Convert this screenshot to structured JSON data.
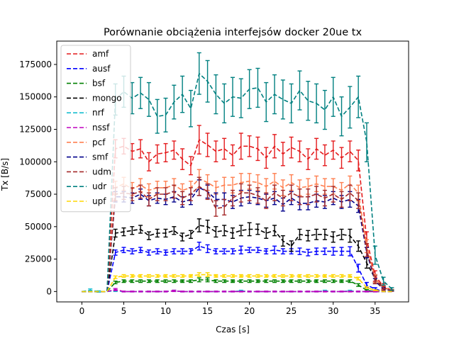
{
  "chart_data": {
    "type": "line",
    "title": "Porównanie obciążenia interfejsów docker 20ue tx",
    "xlabel": "Czas [s]",
    "ylabel": "Tx [B/s]",
    "xlim": [
      -3,
      39
    ],
    "ylim": [
      -8000,
      193000
    ],
    "xticks": [
      0,
      5,
      10,
      15,
      20,
      25,
      30,
      35
    ],
    "yticks": [
      0,
      25000,
      50000,
      75000,
      100000,
      125000,
      150000,
      175000
    ],
    "xtick_labels": [
      "0",
      "5",
      "10",
      "15",
      "20",
      "25",
      "30",
      "35"
    ],
    "ytick_labels": [
      "0",
      "25000",
      "50000",
      "75000",
      "100000",
      "125000",
      "150000",
      "175000"
    ],
    "grid": false,
    "legend_position": "upper-left",
    "line_style": "dashed with error bars",
    "x": [
      0,
      1,
      2,
      3,
      4,
      5,
      6,
      7,
      8,
      9,
      10,
      11,
      12,
      13,
      14,
      15,
      16,
      17,
      18,
      19,
      20,
      21,
      22,
      23,
      24,
      25,
      26,
      27,
      28,
      29,
      30,
      31,
      32,
      33,
      34,
      35,
      36,
      37
    ],
    "series": [
      {
        "name": "amf",
        "color": "#e41a1c",
        "values": [
          0,
          0,
          0,
          0,
          110000,
          112000,
          108000,
          110000,
          100000,
          106000,
          107000,
          109000,
          102000,
          97000,
          117000,
          113000,
          108000,
          110000,
          105000,
          112000,
          112000,
          110000,
          103000,
          112000,
          106000,
          111000,
          108000,
          102000,
          110000,
          105000,
          109000,
          103000,
          108000,
          101000,
          40000,
          12000,
          4000,
          1000
        ],
        "errors": [
          0,
          0,
          0,
          0,
          7000,
          6000,
          6000,
          7000,
          7000,
          7000,
          7000,
          7000,
          8000,
          7000,
          11000,
          9000,
          8000,
          8000,
          8000,
          10000,
          8000,
          9000,
          8000,
          9000,
          9000,
          8000,
          8000,
          8000,
          8000,
          8000,
          7000,
          8000,
          8000,
          8000,
          6000,
          4000,
          2000,
          500
        ]
      },
      {
        "name": "ausf",
        "color": "#0000ff",
        "values": [
          0,
          0,
          0,
          0,
          30000,
          32000,
          31000,
          32000,
          30000,
          31000,
          30000,
          31000,
          31000,
          31000,
          35000,
          33000,
          31000,
          31000,
          31000,
          32000,
          32000,
          32000,
          31000,
          32000,
          31000,
          31000,
          31000,
          30000,
          31000,
          31000,
          31000,
          31000,
          31000,
          18000,
          5000,
          2000,
          0,
          0
        ],
        "errors": [
          0,
          0,
          0,
          0,
          2000,
          2000,
          2000,
          2000,
          2000,
          2000,
          2000,
          2000,
          2000,
          2000,
          3000,
          3000,
          2000,
          2000,
          2000,
          3000,
          2000,
          2000,
          2000,
          3000,
          2000,
          2000,
          2500,
          2500,
          2500,
          2500,
          3000,
          3000,
          3500,
          3000,
          2000,
          1000,
          0,
          0
        ]
      },
      {
        "name": "bsf",
        "color": "#008000",
        "values": [
          0,
          0,
          0,
          0,
          7000,
          8000,
          8000,
          8000,
          8000,
          8000,
          8000,
          8000,
          8000,
          8000,
          9000,
          9000,
          8000,
          8000,
          8000,
          8000,
          8000,
          8000,
          8000,
          8000,
          8000,
          8000,
          8000,
          8000,
          8000,
          8000,
          8000,
          8000,
          8000,
          5000,
          1000,
          0,
          0,
          0
        ],
        "errors": [
          0,
          0,
          0,
          0,
          1000,
          1000,
          1000,
          1000,
          1000,
          1000,
          1000,
          1000,
          1000,
          1000,
          1500,
          1500,
          1000,
          1000,
          1000,
          1000,
          1000,
          1000,
          1000,
          1000,
          1000,
          1000,
          1000,
          1000,
          1000,
          1000,
          1000,
          1000,
          1000,
          1000,
          500,
          0,
          0,
          0
        ]
      },
      {
        "name": "mongo",
        "color": "#000000",
        "values": [
          0,
          0,
          0,
          0,
          45000,
          46000,
          47000,
          48000,
          43000,
          45000,
          45000,
          47000,
          42000,
          44000,
          51000,
          50000,
          46000,
          47000,
          45000,
          47000,
          48000,
          48000,
          45000,
          47000,
          39000,
          35000,
          44000,
          43000,
          44000,
          44000,
          42000,
          44000,
          43000,
          35000,
          22000,
          10000,
          3000,
          1000
        ],
        "errors": [
          0,
          0,
          0,
          0,
          3000,
          3000,
          3000,
          3000,
          3000,
          3000,
          3000,
          3000,
          3000,
          3000,
          5000,
          5000,
          4000,
          4000,
          4000,
          4000,
          5000,
          4000,
          4000,
          4000,
          4000,
          4000,
          4000,
          4000,
          4000,
          4000,
          4000,
          4000,
          5000,
          4000,
          4000,
          3000,
          1500,
          500
        ]
      },
      {
        "name": "nrf",
        "color": "#17becf",
        "values": [
          0,
          1000,
          0,
          0,
          500,
          0,
          0,
          0,
          0,
          0,
          0,
          500,
          0,
          0,
          0,
          0,
          0,
          0,
          0,
          500,
          0,
          0,
          0,
          0,
          0,
          0,
          0,
          0,
          0,
          500,
          0,
          0,
          500,
          0,
          0,
          0,
          0,
          0
        ],
        "errors": [
          0,
          1000,
          500,
          0,
          500,
          300,
          300,
          300,
          300,
          300,
          300,
          500,
          300,
          300,
          300,
          300,
          300,
          300,
          300,
          500,
          300,
          300,
          300,
          300,
          300,
          300,
          300,
          300,
          300,
          500,
          300,
          300,
          500,
          300,
          300,
          300,
          0,
          0
        ]
      },
      {
        "name": "nssf",
        "color": "#bf00bf",
        "values": [
          0,
          0,
          0,
          0,
          1500,
          0,
          0,
          0,
          0,
          0,
          0,
          500,
          0,
          0,
          0,
          0,
          0,
          0,
          0,
          0,
          0,
          0,
          0,
          0,
          0,
          0,
          0,
          0,
          0,
          0,
          0,
          0,
          0,
          0,
          0,
          0,
          0,
          0
        ],
        "errors": [
          0,
          0,
          0,
          0,
          800,
          300,
          300,
          300,
          300,
          300,
          300,
          500,
          300,
          300,
          300,
          300,
          300,
          300,
          300,
          300,
          300,
          300,
          300,
          300,
          300,
          300,
          300,
          300,
          300,
          300,
          300,
          300,
          300,
          300,
          300,
          300,
          0,
          0
        ]
      },
      {
        "name": "pcf",
        "color": "#ff7f50",
        "values": [
          0,
          0,
          0,
          0,
          80000,
          83000,
          79000,
          82000,
          78000,
          80000,
          80000,
          82000,
          78000,
          80000,
          87000,
          84000,
          80000,
          82000,
          82000,
          84000,
          85000,
          84000,
          81000,
          85000,
          80000,
          84000,
          80000,
          81000,
          83000,
          81000,
          81000,
          78000,
          83000,
          76000,
          35000,
          10000,
          3000,
          1000
        ],
        "errors": [
          0,
          0,
          0,
          0,
          5000,
          5000,
          5000,
          5000,
          5000,
          5000,
          5000,
          5000,
          5000,
          5000,
          7000,
          6000,
          5000,
          6000,
          6000,
          7000,
          6000,
          6000,
          6000,
          6000,
          6000,
          6000,
          6000,
          6000,
          6000,
          6000,
          6000,
          6000,
          6000,
          6000,
          5000,
          3000,
          1500,
          500
        ]
      },
      {
        "name": "smf",
        "color": "#00008b",
        "values": [
          0,
          0,
          0,
          0,
          73000,
          73000,
          72000,
          75000,
          70000,
          72000,
          71000,
          73000,
          69000,
          71000,
          80000,
          77000,
          71000,
          71000,
          69000,
          72000,
          73000,
          72000,
          70000,
          72000,
          67000,
          72000,
          68000,
          68000,
          70000,
          69000,
          72000,
          69000,
          71000,
          66000,
          30000,
          8000,
          2000,
          500
        ],
        "errors": [
          0,
          0,
          0,
          0,
          4000,
          4000,
          4000,
          4000,
          4000,
          4000,
          4000,
          4000,
          4000,
          4000,
          6000,
          5000,
          5000,
          5000,
          5000,
          6000,
          5000,
          5000,
          5000,
          5000,
          5000,
          5000,
          5000,
          5000,
          5000,
          5000,
          5000,
          5000,
          6000,
          5000,
          4000,
          2000,
          1000,
          300
        ]
      },
      {
        "name": "udm",
        "color": "#a52a2a",
        "values": [
          0,
          0,
          0,
          0,
          75000,
          76000,
          75000,
          77000,
          71000,
          75000,
          75000,
          77000,
          72000,
          75000,
          81000,
          77000,
          64000,
          65000,
          72000,
          76000,
          76000,
          74000,
          70000,
          76000,
          72000,
          76000,
          73000,
          73000,
          75000,
          72000,
          75000,
          71000,
          76000,
          70000,
          32000,
          9000,
          2500,
          800
        ],
        "errors": [
          0,
          0,
          0,
          0,
          5000,
          5000,
          5000,
          5000,
          5000,
          5000,
          5000,
          5000,
          5000,
          5000,
          7000,
          6000,
          6000,
          6000,
          6000,
          7000,
          6000,
          6000,
          6000,
          6000,
          6000,
          6000,
          6000,
          6000,
          6000,
          6000,
          6000,
          6000,
          6000,
          6000,
          5000,
          3000,
          1500,
          500
        ]
      },
      {
        "name": "udr",
        "color": "#008080",
        "values": [
          0,
          0,
          0,
          0,
          148000,
          154000,
          149000,
          153000,
          148000,
          135000,
          136000,
          146000,
          152000,
          141000,
          168000,
          162000,
          152000,
          145000,
          150000,
          149000,
          156000,
          157000,
          146000,
          152000,
          148000,
          145000,
          155000,
          147000,
          145000,
          140000,
          150000,
          135000,
          142000,
          150000,
          115000,
          28000,
          8000,
          2000
        ],
        "errors": [
          0,
          0,
          0,
          0,
          12000,
          12000,
          12000,
          12000,
          13000,
          13000,
          13000,
          13000,
          14000,
          14000,
          16000,
          16000,
          15000,
          15000,
          15000,
          15000,
          15000,
          15000,
          15000,
          15000,
          15000,
          15000,
          15000,
          15000,
          15000,
          15000,
          15000,
          15000,
          16000,
          16000,
          15000,
          7000,
          3000,
          1000
        ]
      },
      {
        "name": "upf",
        "color": "#ffd700",
        "values": [
          0,
          0,
          0,
          0,
          11000,
          12000,
          12000,
          12000,
          12000,
          12000,
          12000,
          12000,
          12000,
          12000,
          13000,
          13000,
          12000,
          12000,
          12000,
          12000,
          12000,
          12000,
          12000,
          12000,
          12000,
          12000,
          12000,
          12000,
          12000,
          12000,
          12000,
          12000,
          12000,
          10000,
          3000,
          1000,
          0,
          0
        ],
        "errors": [
          0,
          0,
          0,
          0,
          1000,
          1000,
          1000,
          1000,
          1000,
          1000,
          1000,
          1000,
          1000,
          1000,
          1500,
          1500,
          1000,
          1000,
          1000,
          1000,
          1000,
          1000,
          1000,
          1000,
          1000,
          1000,
          1000,
          1000,
          1000,
          1000,
          1000,
          1000,
          1000,
          1000,
          500,
          300,
          0,
          0
        ]
      }
    ]
  }
}
